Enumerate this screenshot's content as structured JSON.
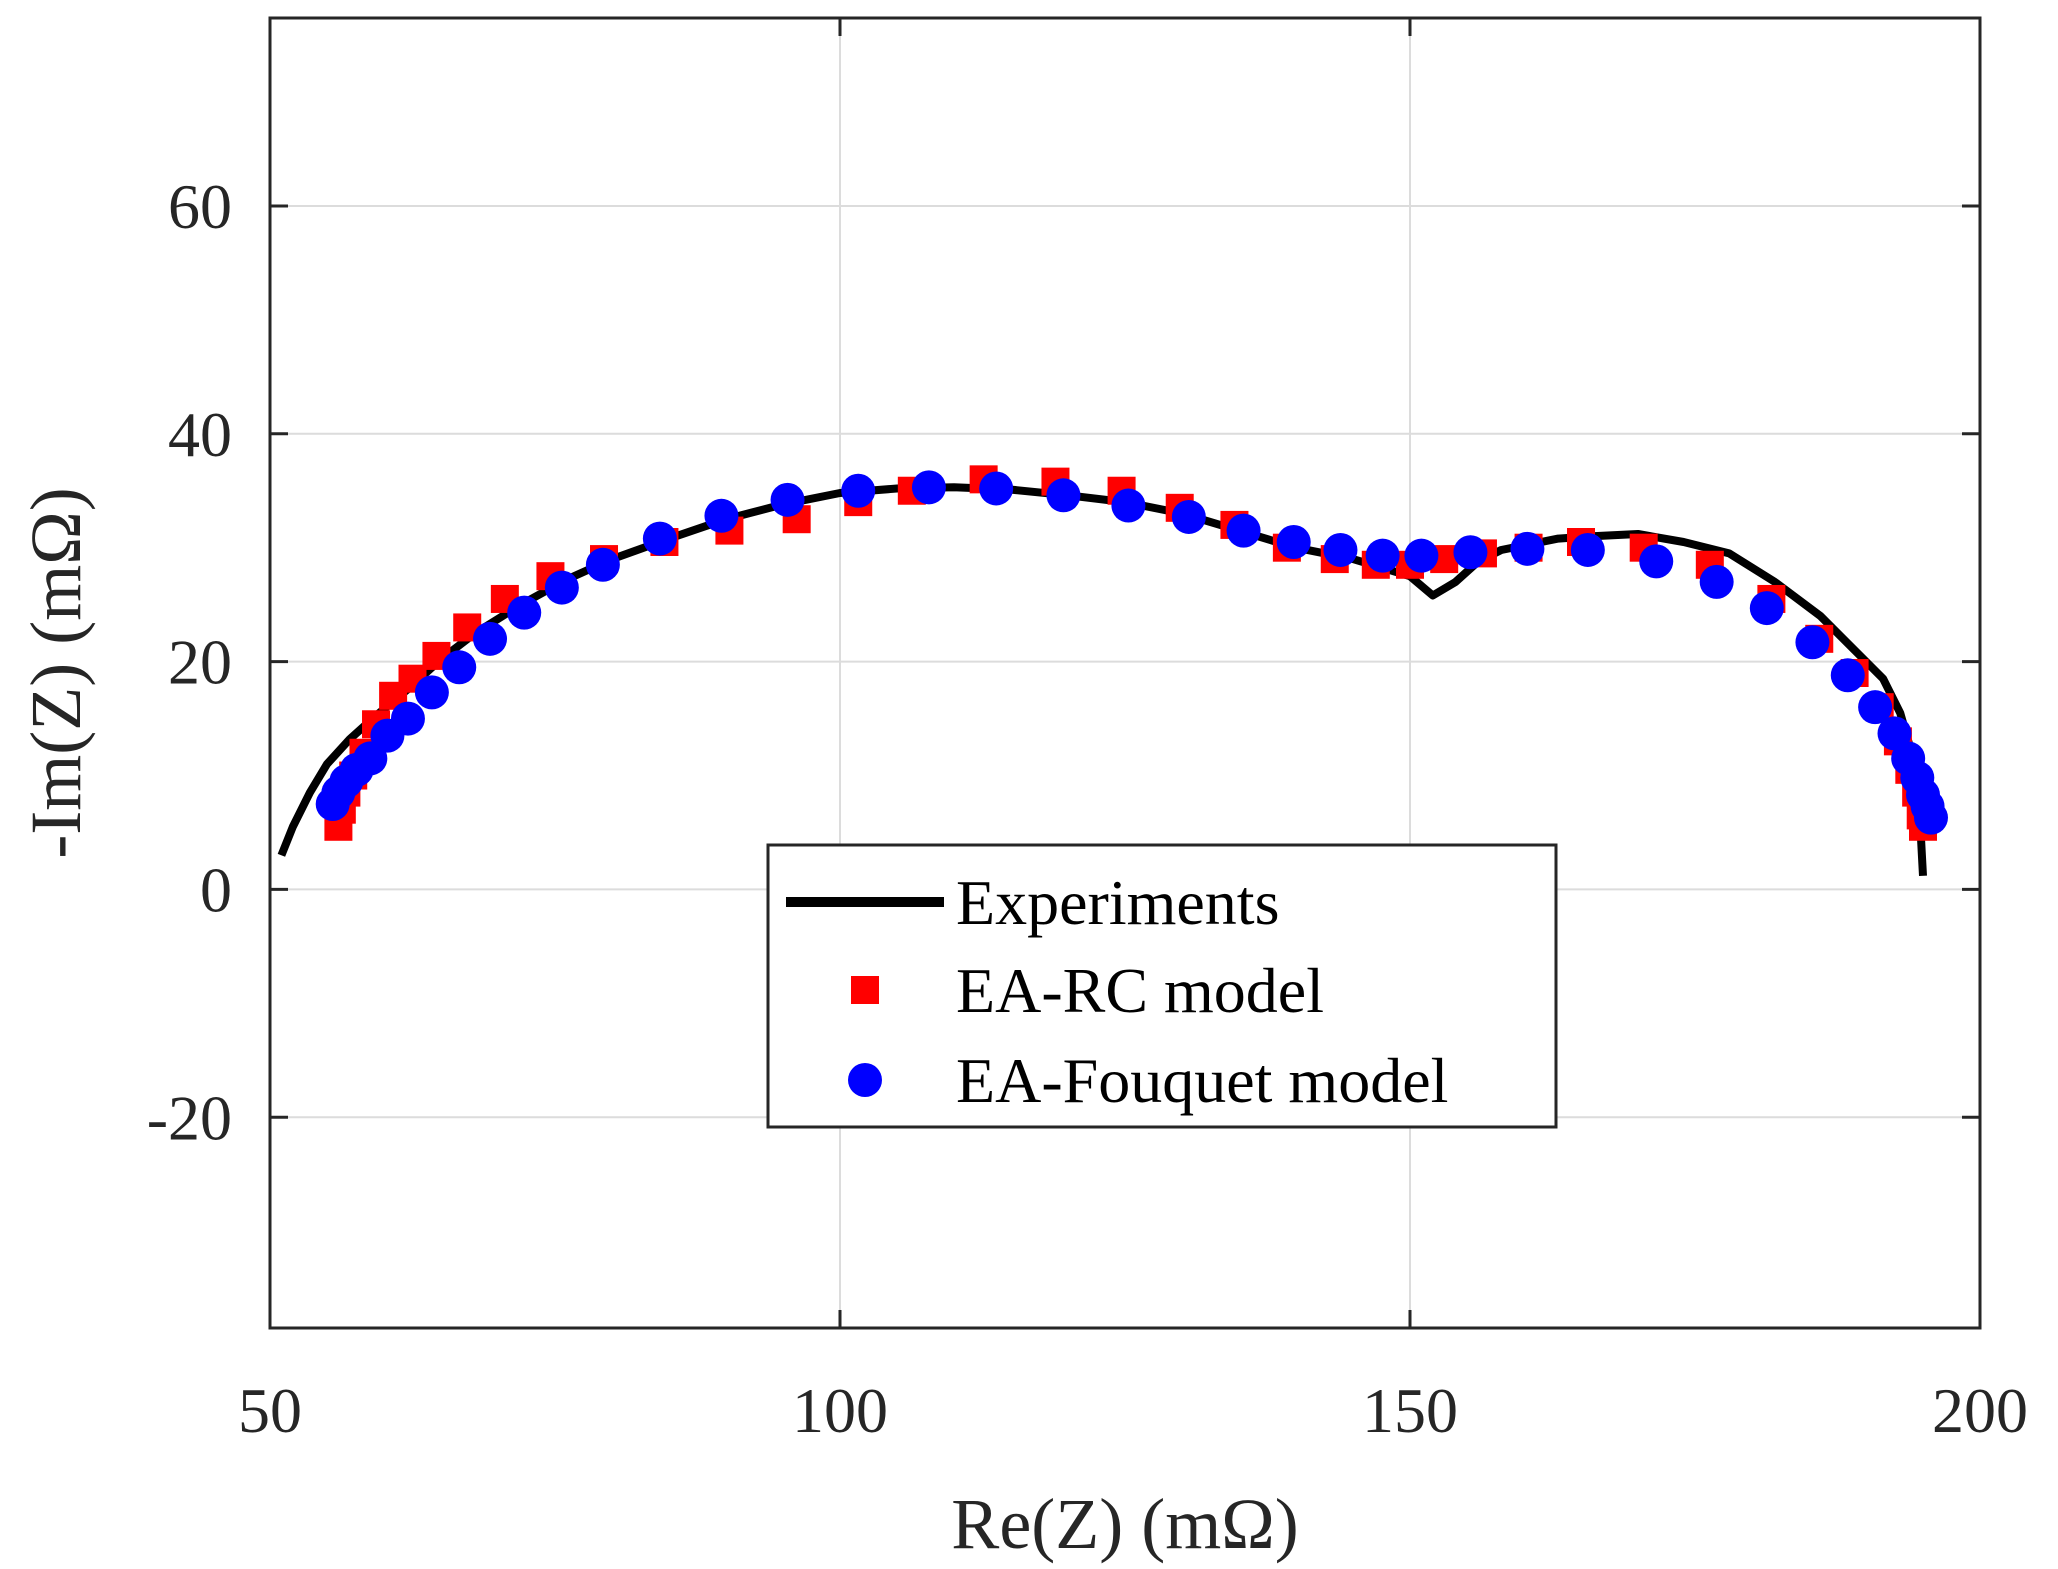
{
  "chart_data": {
    "type": "scatter",
    "title": "",
    "xlabel": "Re(Z) (mΩ)",
    "ylabel": "-Im(Z) (mΩ)",
    "xlim": [
      50,
      200
    ],
    "ylim": [
      -38.5,
      76.5
    ],
    "xticks": [
      50,
      100,
      150,
      200
    ],
    "xtick_labels": [
      "50",
      "100",
      "150",
      "200"
    ],
    "yticks": [
      -20,
      0,
      20,
      40,
      60
    ],
    "ytick_labels": [
      "-20",
      "0",
      "20",
      "40",
      "60"
    ],
    "grid": true,
    "legend_position": "bottom-center",
    "series": [
      {
        "name": "Experiments",
        "kind": "line",
        "color": "#000000",
        "x": [
          51,
          52,
          53.5,
          55,
          57,
          59,
          62,
          65,
          68,
          72,
          76,
          80,
          85,
          90,
          95,
          100,
          105,
          110,
          115,
          120,
          125,
          130,
          135,
          140,
          145,
          150,
          152,
          154,
          156,
          158,
          160,
          163,
          166,
          170,
          174,
          178,
          182,
          186,
          189,
          191.5,
          193,
          194,
          194.5,
          194.8,
          194.9,
          195
        ],
        "y": [
          3,
          5.5,
          8.5,
          11,
          13.2,
          15,
          17.5,
          20.2,
          22.5,
          25,
          27.2,
          29,
          30.8,
          32.5,
          33.8,
          34.8,
          35.2,
          35.3,
          35.1,
          34.6,
          34,
          33,
          31.5,
          30,
          29,
          27.5,
          25.8,
          27,
          28.8,
          29.8,
          30.2,
          30.8,
          31,
          31.2,
          30.5,
          29.5,
          27,
          24,
          21,
          18.5,
          15.5,
          12,
          8,
          5,
          3,
          1.2
        ]
      },
      {
        "name": "EA-RC model",
        "kind": "square",
        "color": "#ff0000",
        "x": [
          56,
          56.3,
          56.7,
          57.3,
          58.2,
          59.3,
          60.8,
          62.5,
          64.6,
          67.3,
          70.6,
          74.6,
          79.3,
          84.6,
          90.3,
          96.2,
          101.6,
          106.3,
          112.6,
          118.9,
          124.7,
          129.8,
          134.6,
          139.2,
          143.4,
          147,
          150,
          153,
          156.4,
          160.4,
          165,
          170.5,
          176.3,
          181.7,
          185.9,
          189,
          191.2,
          192.8,
          193.8,
          194.4,
          194.8,
          195
        ],
        "y": [
          5.5,
          7,
          8.5,
          10,
          12,
          14.5,
          17,
          18.5,
          20.5,
          23,
          25.5,
          27.5,
          29,
          30.5,
          31.5,
          32.5,
          34,
          35,
          36,
          35.8,
          35,
          33.5,
          32,
          30,
          29,
          28.5,
          28.5,
          29,
          29.5,
          30,
          30.5,
          30,
          28.5,
          25.5,
          22,
          19,
          16,
          13,
          10.5,
          8.5,
          6.5,
          5.5
        ]
      },
      {
        "name": "EA-Fouquet model",
        "kind": "circle",
        "color": "#0000ff",
        "x": [
          55.5,
          56,
          56.7,
          57.6,
          58.8,
          60.3,
          62.1,
          64.2,
          66.6,
          69.3,
          72.3,
          75.6,
          79.2,
          84.2,
          89.6,
          95.4,
          101.6,
          107.8,
          113.7,
          119.6,
          125.3,
          130.6,
          135.4,
          139.8,
          143.9,
          147.6,
          151,
          155.3,
          160.3,
          165.6,
          171.6,
          176.9,
          181.3,
          185.3,
          188.4,
          190.8,
          192.5,
          193.7,
          194.5,
          195,
          195.4,
          195.7
        ],
        "y": [
          7.5,
          8.5,
          9.5,
          10.5,
          11.5,
          13.5,
          15,
          17.3,
          19.5,
          22,
          24.3,
          26.5,
          28.5,
          30.8,
          32.8,
          34.2,
          35,
          35.3,
          35.2,
          34.6,
          33.7,
          32.7,
          31.5,
          30.5,
          29.8,
          29.3,
          29.3,
          29.6,
          29.9,
          29.8,
          28.8,
          27,
          24.7,
          21.7,
          18.8,
          16,
          13.7,
          11.5,
          9.8,
          8.3,
          7.3,
          6.3
        ]
      }
    ]
  }
}
